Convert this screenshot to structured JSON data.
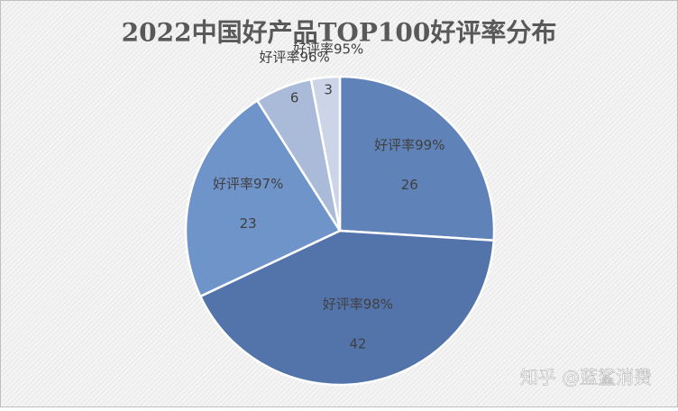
{
  "chart_data": {
    "type": "pie",
    "title": "2022中国好产品TOP100好评率分布",
    "categories": [
      "好评率99%",
      "好评率98%",
      "好评率97%",
      "好评率96%",
      "好评率95%"
    ],
    "values": [
      26,
      42,
      23,
      6,
      3
    ],
    "colors": [
      "#5f82b8",
      "#5274aa",
      "#6f94c9",
      "#a9bbd9",
      "#cbd5e7"
    ]
  },
  "watermark": "知乎 @蓝鲨消费"
}
